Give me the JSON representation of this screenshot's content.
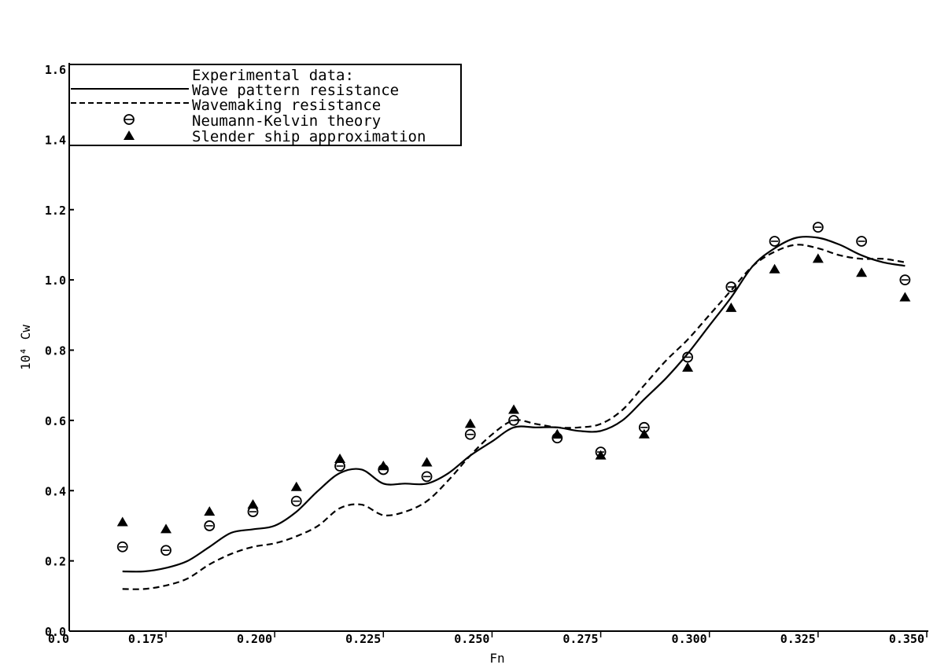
{
  "chart_data": {
    "type": "line",
    "xlabel": "Fn",
    "ylabel": "10⁴ Cw",
    "xlim": [
      0.155,
      0.35
    ],
    "ylim": [
      0.0,
      1.6
    ],
    "x_ticks": [
      0.175,
      0.2,
      0.225,
      0.25,
      0.275,
      0.3,
      0.325,
      0.35
    ],
    "x_tick_labels": [
      "0.175",
      "0.200",
      "0.225",
      "0.250",
      "0.275",
      "0.300",
      "0.325",
      "0.350"
    ],
    "x_zero_label": "0.0",
    "y_ticks": [
      0.0,
      0.2,
      0.4,
      0.6,
      0.8,
      1.0,
      1.2,
      1.4,
      1.6
    ],
    "y_tick_labels": [
      "0.0",
      "0.2",
      "0.4",
      "0.6",
      "0.8",
      "1.0",
      "1.2",
      "1.4",
      "1.6"
    ],
    "legend": {
      "header": "Experimental data:",
      "entries": [
        "Wave pattern resistance",
        "Wavemaking resistance",
        "Neumann-Kelvin theory",
        "Slender ship approximation"
      ]
    },
    "series": [
      {
        "name": "Wave pattern resistance",
        "style": "solid",
        "x": [
          0.165,
          0.17,
          0.175,
          0.18,
          0.185,
          0.19,
          0.195,
          0.2,
          0.205,
          0.21,
          0.215,
          0.22,
          0.225,
          0.23,
          0.235,
          0.24,
          0.245,
          0.25,
          0.255,
          0.26,
          0.265,
          0.27,
          0.275,
          0.28,
          0.285,
          0.29,
          0.295,
          0.3,
          0.305,
          0.31,
          0.315,
          0.32,
          0.325,
          0.33,
          0.335,
          0.34,
          0.345
        ],
        "y": [
          0.17,
          0.17,
          0.18,
          0.2,
          0.24,
          0.28,
          0.29,
          0.3,
          0.34,
          0.4,
          0.45,
          0.46,
          0.42,
          0.42,
          0.42,
          0.45,
          0.5,
          0.54,
          0.58,
          0.58,
          0.58,
          0.57,
          0.57,
          0.6,
          0.66,
          0.72,
          0.79,
          0.87,
          0.95,
          1.04,
          1.09,
          1.12,
          1.12,
          1.1,
          1.07,
          1.05,
          1.04
        ]
      },
      {
        "name": "Wavemaking resistance",
        "style": "dashed",
        "x": [
          0.165,
          0.17,
          0.175,
          0.18,
          0.185,
          0.19,
          0.195,
          0.2,
          0.205,
          0.21,
          0.215,
          0.22,
          0.225,
          0.23,
          0.235,
          0.24,
          0.245,
          0.25,
          0.255,
          0.26,
          0.265,
          0.27,
          0.275,
          0.28,
          0.285,
          0.29,
          0.295,
          0.3,
          0.305,
          0.31,
          0.315,
          0.32,
          0.325,
          0.33,
          0.335,
          0.34,
          0.345
        ],
        "y": [
          0.12,
          0.12,
          0.13,
          0.15,
          0.19,
          0.22,
          0.24,
          0.25,
          0.27,
          0.3,
          0.35,
          0.36,
          0.33,
          0.34,
          0.37,
          0.43,
          0.5,
          0.56,
          0.6,
          0.59,
          0.58,
          0.58,
          0.59,
          0.63,
          0.7,
          0.77,
          0.83,
          0.9,
          0.97,
          1.04,
          1.08,
          1.1,
          1.09,
          1.07,
          1.06,
          1.06,
          1.05
        ]
      },
      {
        "name": "Neumann-Kelvin theory",
        "style": "circle",
        "x": [
          0.165,
          0.175,
          0.185,
          0.195,
          0.205,
          0.215,
          0.225,
          0.235,
          0.245,
          0.255,
          0.265,
          0.275,
          0.285,
          0.295,
          0.305,
          0.315,
          0.325,
          0.335,
          0.345
        ],
        "y": [
          0.24,
          0.23,
          0.3,
          0.34,
          0.37,
          0.47,
          0.46,
          0.44,
          0.56,
          0.6,
          0.55,
          0.51,
          0.58,
          0.78,
          0.98,
          1.11,
          1.15,
          1.11,
          1.0
        ]
      },
      {
        "name": "Slender ship approximation",
        "style": "triangle",
        "x": [
          0.165,
          0.175,
          0.185,
          0.195,
          0.205,
          0.215,
          0.225,
          0.235,
          0.245,
          0.255,
          0.265,
          0.275,
          0.285,
          0.295,
          0.305,
          0.315,
          0.325,
          0.335,
          0.345
        ],
        "y": [
          0.31,
          0.29,
          0.34,
          0.36,
          0.41,
          0.49,
          0.47,
          0.48,
          0.59,
          0.63,
          0.56,
          0.5,
          0.56,
          0.75,
          0.92,
          1.03,
          1.06,
          1.02,
          0.95
        ]
      }
    ]
  }
}
